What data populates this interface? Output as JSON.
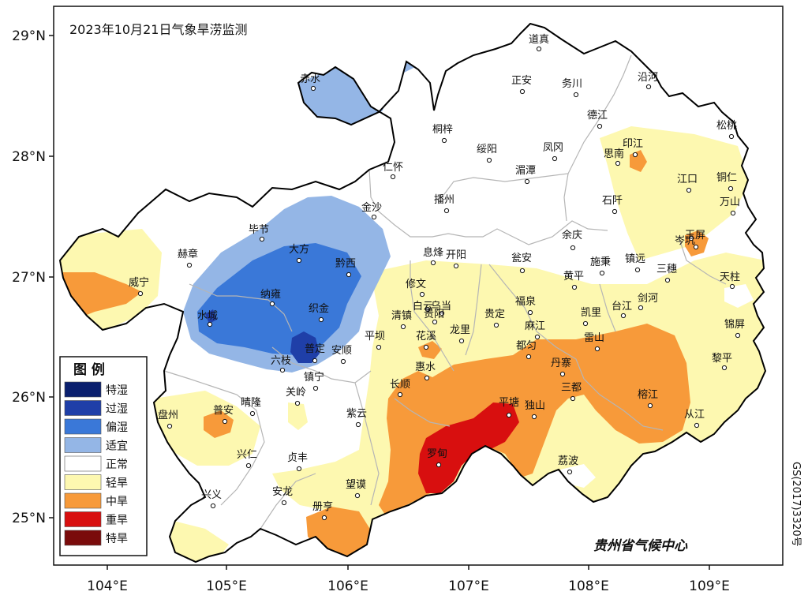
{
  "map": {
    "title": "2023年10月21日气象旱涝监测",
    "org": "贵州省气候中心",
    "gs_number": "GS(2017)3320号",
    "axes": {
      "lat_labels": [
        "29°N",
        "28°N",
        "27°N",
        "26°N",
        "25°N"
      ],
      "lon_labels": [
        "104°E",
        "105°E",
        "106°E",
        "107°E",
        "108°E",
        "109°E"
      ]
    },
    "legend": {
      "title": "图  例",
      "items": [
        {
          "label": "特湿",
          "color": "#0a1f6e"
        },
        {
          "label": "过湿",
          "color": "#1f3fa8"
        },
        {
          "label": "偏湿",
          "color": "#3a78d8"
        },
        {
          "label": "适宜",
          "color": "#94b6e6"
        },
        {
          "label": "正常",
          "color": "#ffffff"
        },
        {
          "label": "轻旱",
          "color": "#fdf8b0"
        },
        {
          "label": "中旱",
          "color": "#f79a3a"
        },
        {
          "label": "重旱",
          "color": "#d80f0f"
        },
        {
          "label": "特旱",
          "color": "#7a0b0b"
        }
      ]
    },
    "cities": [
      {
        "name": "道真"
      },
      {
        "name": "赤水"
      },
      {
        "name": "正安"
      },
      {
        "name": "务川"
      },
      {
        "name": "沿河"
      },
      {
        "name": "德江"
      },
      {
        "name": "松桃"
      },
      {
        "name": "桐梓"
      },
      {
        "name": "绥阳"
      },
      {
        "name": "凤冈"
      },
      {
        "name": "思南"
      },
      {
        "name": "印江"
      },
      {
        "name": "仁怀"
      },
      {
        "name": "湄潭"
      },
      {
        "name": "江口"
      },
      {
        "name": "铜仁"
      },
      {
        "name": "金沙"
      },
      {
        "name": "播州"
      },
      {
        "name": "石阡"
      },
      {
        "name": "万山"
      },
      {
        "name": "毕节"
      },
      {
        "name": "余庆"
      },
      {
        "name": "岑巩"
      },
      {
        "name": "玉屏"
      },
      {
        "name": "赫章"
      },
      {
        "name": "大方"
      },
      {
        "name": "黔西"
      },
      {
        "name": "息烽"
      },
      {
        "name": "开阳"
      },
      {
        "name": "瓮安"
      },
      {
        "name": "施秉"
      },
      {
        "name": "镇远"
      },
      {
        "name": "三穗"
      },
      {
        "name": "天柱"
      },
      {
        "name": "威宁"
      },
      {
        "name": "黄平"
      },
      {
        "name": "纳雍"
      },
      {
        "name": "修文"
      },
      {
        "name": "白云"
      },
      {
        "name": "乌当"
      },
      {
        "name": "福泉"
      },
      {
        "name": "凯里"
      },
      {
        "name": "台江"
      },
      {
        "name": "剑河"
      },
      {
        "name": "水城"
      },
      {
        "name": "织金"
      },
      {
        "name": "清镇"
      },
      {
        "name": "贵阳"
      },
      {
        "name": "贵定"
      },
      {
        "name": "麻江"
      },
      {
        "name": "锦屏"
      },
      {
        "name": "花溪"
      },
      {
        "name": "龙里"
      },
      {
        "name": "雷山"
      },
      {
        "name": "普定"
      },
      {
        "name": "平坝"
      },
      {
        "name": "安顺"
      },
      {
        "name": "都匀"
      },
      {
        "name": "六枝"
      },
      {
        "name": "黎平"
      },
      {
        "name": "镇宁"
      },
      {
        "name": "惠水"
      },
      {
        "name": "丹寨"
      },
      {
        "name": "长顺"
      },
      {
        "name": "三都"
      },
      {
        "name": "关岭"
      },
      {
        "name": "榕江"
      },
      {
        "name": "晴隆"
      },
      {
        "name": "平塘"
      },
      {
        "name": "独山"
      },
      {
        "name": "紫云"
      },
      {
        "name": "盘州"
      },
      {
        "name": "普安"
      },
      {
        "name": "从江"
      },
      {
        "name": "罗甸"
      },
      {
        "name": "兴仁"
      },
      {
        "name": "荔波"
      },
      {
        "name": "贞丰"
      },
      {
        "name": "兴义"
      },
      {
        "name": "安龙"
      },
      {
        "name": "望谟"
      },
      {
        "name": "册亨"
      }
    ]
  }
}
